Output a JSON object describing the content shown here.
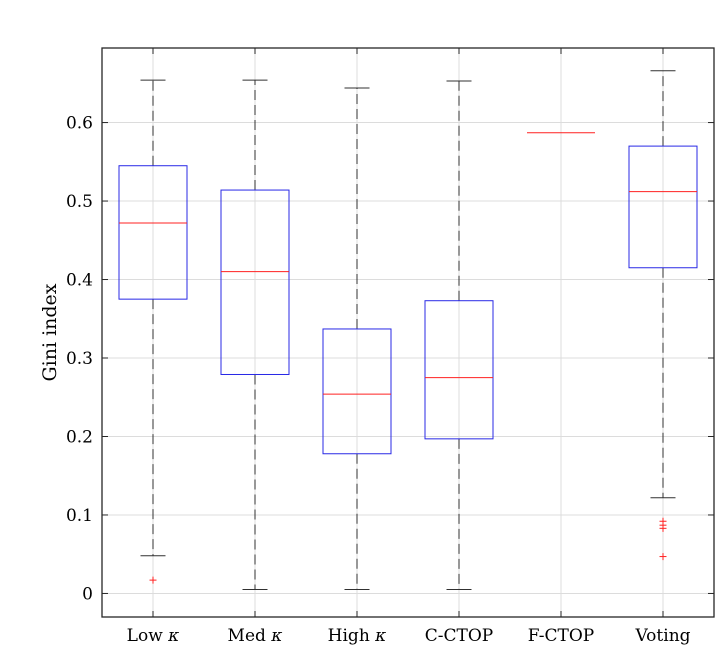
{
  "chart_data": {
    "type": "boxplot",
    "title": "",
    "xlabel": "",
    "ylabel": "Gini index",
    "ylim": [
      -0.03,
      0.695
    ],
    "yticks": [
      0,
      0.1,
      0.2,
      0.3,
      0.4,
      0.5,
      0.6
    ],
    "ytick_labels": [
      "0",
      "0.1",
      "0.2",
      "0.3",
      "0.4",
      "0.5",
      "0.6"
    ],
    "grid": true,
    "categories": [
      "Low κ",
      "Med κ",
      "High κ",
      "C-CTOP",
      "F-CTOP",
      "Voting"
    ],
    "category_labels": [
      {
        "text": "Low ",
        "symbol": "κ"
      },
      {
        "text": "Med ",
        "symbol": "κ"
      },
      {
        "text": "High ",
        "symbol": "κ"
      },
      {
        "text": "C-CTOP",
        "symbol": ""
      },
      {
        "text": "F-CTOP",
        "symbol": ""
      },
      {
        "text": "Voting",
        "symbol": ""
      }
    ],
    "boxes": [
      {
        "name": "Low κ",
        "whisker_low": 0.048,
        "q1": 0.375,
        "median": 0.472,
        "q3": 0.545,
        "whisker_high": 0.654,
        "outliers": [
          0.017
        ]
      },
      {
        "name": "Med κ",
        "whisker_low": 0.005,
        "q1": 0.279,
        "median": 0.41,
        "q3": 0.514,
        "whisker_high": 0.654,
        "outliers": []
      },
      {
        "name": "High κ",
        "whisker_low": 0.005,
        "q1": 0.178,
        "median": 0.254,
        "q3": 0.337,
        "whisker_high": 0.644,
        "outliers": []
      },
      {
        "name": "C-CTOP",
        "whisker_low": 0.005,
        "q1": 0.197,
        "median": 0.275,
        "q3": 0.373,
        "whisker_high": 0.653,
        "outliers": []
      },
      {
        "name": "F-CTOP",
        "whisker_low": 0.587,
        "q1": 0.587,
        "median": 0.587,
        "q3": 0.587,
        "whisker_high": 0.587,
        "outliers": []
      },
      {
        "name": "Voting",
        "whisker_low": 0.122,
        "q1": 0.415,
        "median": 0.512,
        "q3": 0.57,
        "whisker_high": 0.666,
        "outliers": [
          0.092,
          0.087,
          0.083,
          0.047
        ]
      }
    ],
    "colors": {
      "box": "#2828e6",
      "median": "#ff2020",
      "whisker": "#303030",
      "outlier": "#ff2020",
      "grid": "#dcdcdc",
      "axis": "#262626"
    }
  }
}
